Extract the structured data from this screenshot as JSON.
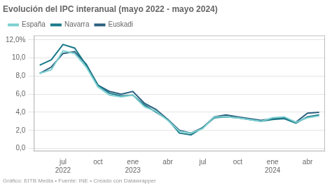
{
  "chart_data": {
    "type": "line",
    "title": "Evolución del IPC interanual (mayo 2022 - mayo 2024)",
    "annotations": [
      "Gráfico: EITB Media • Fuente: INE • Creado con Datawrapper"
    ],
    "categories": [
      null,
      null,
      "jul\n2022",
      null,
      null,
      "oct",
      null,
      null,
      "ene\n2023",
      null,
      null,
      "abr",
      null,
      null,
      "jul",
      null,
      null,
      "oct",
      null,
      null,
      "ene\n2024",
      null,
      null,
      "abr",
      null
    ],
    "series": [
      {
        "name": "España",
        "color": "#7dd0d0",
        "values": [
          8.3,
          8.7,
          10.8,
          10.5,
          9.0,
          6.8,
          5.9,
          5.7,
          5.9,
          4.6,
          4.1,
          3.1,
          1.9,
          1.7,
          2.2,
          3.5,
          3.5,
          3.4,
          3.2,
          3.0,
          3.4,
          3.5,
          2.9,
          3.4,
          3.6
        ]
      },
      {
        "name": "Navarra",
        "color": "#1a7a8a",
        "values": [
          9.2,
          9.8,
          11.5,
          11.1,
          9.2,
          7.0,
          6.1,
          5.8,
          5.9,
          4.8,
          4.0,
          3.2,
          1.7,
          1.5,
          2.3,
          3.4,
          3.5,
          3.4,
          3.2,
          3.0,
          3.2,
          3.3,
          2.8,
          3.5,
          3.7
        ]
      },
      {
        "name": "Euskadi",
        "color": "#2a6080",
        "values": [
          8.3,
          9.0,
          10.5,
          10.7,
          9.3,
          7.0,
          6.3,
          6.0,
          6.3,
          5.0,
          4.3,
          3.2,
          2.0,
          1.7,
          2.3,
          3.5,
          3.7,
          3.5,
          3.3,
          3.1,
          3.3,
          3.4,
          2.9,
          3.9,
          4.0
        ]
      }
    ],
    "ylim": [
      -0.3,
      12.5
    ],
    "yticks": [
      {
        "value": 0.0,
        "label": "0,0"
      },
      {
        "value": 2.0,
        "label": "2,0"
      },
      {
        "value": 4.0,
        "label": "4,0"
      },
      {
        "value": 6.0,
        "label": "6,0"
      },
      {
        "value": 8.0,
        "label": "8,0"
      },
      {
        "value": 10.0,
        "label": "10,0"
      },
      {
        "value": 12.0,
        "label": "12,0%"
      }
    ],
    "grid": true,
    "legend": "top"
  }
}
